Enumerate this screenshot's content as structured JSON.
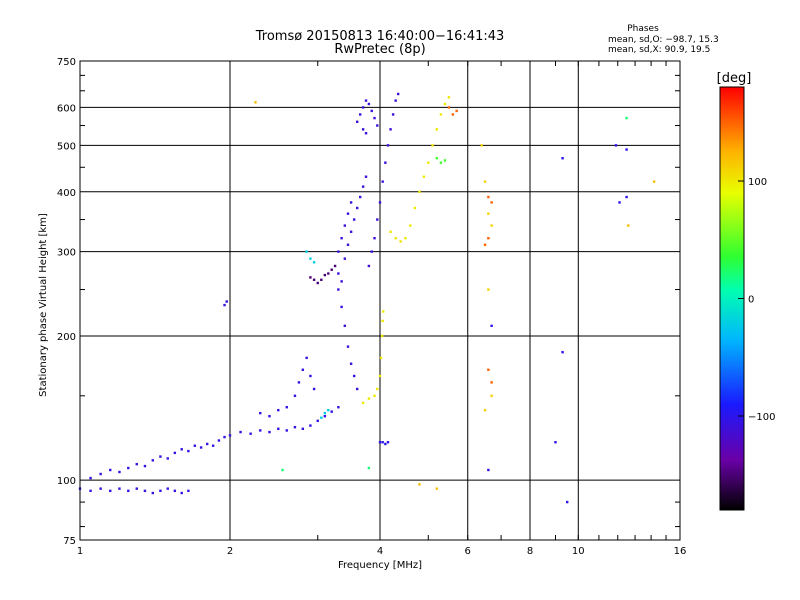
{
  "chart_data": {
    "type": "scatter",
    "title": "Tromsø 20150813 16:40:00−16:41:43",
    "subtitle": "RwPretec (8p)",
    "xlabel": "Frequency [MHz]",
    "ylabel": "Stationary phase Virtual Height [km]",
    "xscale": "log",
    "yscale": "log",
    "xlim": [
      1,
      16
    ],
    "ylim": [
      75,
      750
    ],
    "x_ticks": [
      "1",
      "2",
      "4",
      "6",
      "8",
      "10",
      "16"
    ],
    "x_tick_values": [
      1,
      2,
      4,
      6,
      8,
      10,
      16
    ],
    "y_ticks": [
      "75",
      "100",
      "200",
      "300",
      "400",
      "500",
      "600",
      "750"
    ],
    "y_tick_values": [
      75,
      100,
      200,
      300,
      400,
      500,
      600,
      750
    ],
    "x_gridlines": [
      2,
      4,
      6,
      8,
      10
    ],
    "y_gridlines": [
      100,
      200,
      300,
      400,
      500,
      600
    ],
    "phase_stats": {
      "title": "Phases",
      "line_o": "mean, sd,O: −98.7, 15.3",
      "line_x": "mean, sd,X:  90.9, 19.5"
    },
    "colorbar": {
      "label": "[deg]",
      "range": [
        -180,
        180
      ],
      "ticks": [
        "100",
        "0",
        "−100"
      ],
      "tick_values": [
        100,
        0,
        -100
      ]
    },
    "series": [
      {
        "color_value": -105,
        "points": [
          [
            1.0,
            96
          ],
          [
            1.05,
            95
          ],
          [
            1.1,
            96
          ],
          [
            1.15,
            95
          ],
          [
            1.2,
            96
          ],
          [
            1.25,
            95
          ],
          [
            1.3,
            96
          ],
          [
            1.35,
            95
          ],
          [
            1.4,
            94
          ],
          [
            1.45,
            95
          ],
          [
            1.5,
            96
          ],
          [
            1.55,
            95
          ],
          [
            1.6,
            94
          ],
          [
            1.65,
            95
          ],
          [
            1.05,
            101
          ],
          [
            1.1,
            103
          ],
          [
            1.15,
            105
          ],
          [
            1.2,
            104
          ],
          [
            1.25,
            106
          ],
          [
            1.3,
            108
          ],
          [
            1.35,
            107
          ],
          [
            1.4,
            110
          ],
          [
            1.45,
            112
          ],
          [
            1.5,
            111
          ],
          [
            1.55,
            114
          ],
          [
            1.6,
            116
          ],
          [
            1.65,
            115
          ],
          [
            1.7,
            118
          ],
          [
            1.75,
            117
          ],
          [
            1.8,
            119
          ],
          [
            1.85,
            118
          ],
          [
            1.9,
            121
          ],
          [
            1.95,
            123
          ],
          [
            2.0,
            124
          ],
          [
            2.1,
            126
          ],
          [
            2.2,
            125
          ],
          [
            2.3,
            127
          ],
          [
            2.4,
            126
          ],
          [
            2.5,
            128
          ],
          [
            2.6,
            127
          ],
          [
            2.7,
            129
          ],
          [
            2.8,
            128
          ],
          [
            2.9,
            130
          ],
          [
            3.0,
            133
          ],
          [
            3.1,
            136
          ],
          [
            3.2,
            139
          ],
          [
            3.3,
            142
          ],
          [
            1.95,
            232
          ],
          [
            1.97,
            236
          ],
          [
            2.3,
            138
          ],
          [
            2.4,
            136
          ],
          [
            2.5,
            140
          ],
          [
            2.6,
            142
          ],
          [
            2.7,
            150
          ],
          [
            2.75,
            160
          ],
          [
            2.8,
            170
          ],
          [
            2.85,
            180
          ],
          [
            2.9,
            165
          ],
          [
            2.95,
            155
          ]
        ]
      },
      {
        "color_value": -110,
        "points": [
          [
            3.3,
            300
          ],
          [
            3.35,
            320
          ],
          [
            3.4,
            340
          ],
          [
            3.45,
            360
          ],
          [
            3.5,
            380
          ],
          [
            3.3,
            250
          ],
          [
            3.35,
            230
          ],
          [
            3.4,
            210
          ],
          [
            3.45,
            190
          ],
          [
            3.5,
            175
          ],
          [
            3.55,
            165
          ],
          [
            3.6,
            155
          ],
          [
            3.3,
            270
          ],
          [
            3.35,
            260
          ],
          [
            3.4,
            290
          ],
          [
            3.45,
            310
          ],
          [
            3.5,
            330
          ],
          [
            3.55,
            350
          ],
          [
            3.6,
            370
          ],
          [
            3.65,
            390
          ],
          [
            3.7,
            410
          ],
          [
            3.75,
            430
          ],
          [
            3.8,
            280
          ],
          [
            3.85,
            300
          ],
          [
            3.9,
            320
          ],
          [
            3.95,
            350
          ],
          [
            4.0,
            380
          ],
          [
            4.05,
            420
          ],
          [
            4.1,
            460
          ],
          [
            4.15,
            500
          ],
          [
            4.2,
            540
          ],
          [
            4.25,
            580
          ],
          [
            4.3,
            620
          ],
          [
            4.35,
            640
          ],
          [
            3.6,
            560
          ],
          [
            3.65,
            580
          ],
          [
            3.7,
            600
          ],
          [
            3.75,
            620
          ],
          [
            3.8,
            610
          ],
          [
            3.85,
            590
          ],
          [
            3.9,
            570
          ],
          [
            3.95,
            550
          ],
          [
            3.7,
            540
          ],
          [
            3.75,
            530
          ]
        ]
      },
      {
        "color_value": -150,
        "points": [
          [
            2.9,
            265
          ],
          [
            2.95,
            262
          ],
          [
            3.0,
            258
          ],
          [
            3.05,
            262
          ],
          [
            3.1,
            268
          ],
          [
            3.15,
            270
          ],
          [
            3.2,
            275
          ],
          [
            3.25,
            280
          ]
        ]
      },
      {
        "color_value": -20,
        "points": [
          [
            2.85,
            300
          ],
          [
            2.9,
            290
          ],
          [
            2.95,
            285
          ],
          [
            3.05,
            135
          ],
          [
            3.1,
            138
          ],
          [
            3.15,
            140
          ]
        ]
      },
      {
        "color_value": 100,
        "points": [
          [
            3.7,
            145
          ],
          [
            3.8,
            148
          ],
          [
            3.9,
            150
          ],
          [
            3.95,
            155
          ],
          [
            4.0,
            165
          ],
          [
            4.02,
            180
          ],
          [
            4.04,
            200
          ],
          [
            4.05,
            215
          ],
          [
            4.06,
            225
          ],
          [
            4.2,
            330
          ],
          [
            4.3,
            320
          ],
          [
            4.4,
            315
          ],
          [
            4.5,
            320
          ],
          [
            4.6,
            340
          ],
          [
            4.7,
            370
          ],
          [
            4.8,
            400
          ],
          [
            4.9,
            430
          ],
          [
            5.0,
            460
          ],
          [
            5.1,
            500
          ],
          [
            5.2,
            540
          ],
          [
            5.3,
            580
          ],
          [
            5.4,
            610
          ],
          [
            5.5,
            630
          ]
        ]
      },
      {
        "color_value": 40,
        "points": [
          [
            5.2,
            470
          ],
          [
            5.3,
            460
          ],
          [
            5.4,
            465
          ]
        ]
      },
      {
        "color_value": 150,
        "points": [
          [
            5.5,
            600
          ],
          [
            5.6,
            580
          ],
          [
            5.7,
            590
          ],
          [
            6.6,
            390
          ],
          [
            6.7,
            380
          ],
          [
            6.6,
            170
          ],
          [
            6.7,
            160
          ],
          [
            6.5,
            310
          ],
          [
            6.6,
            320
          ]
        ]
      },
      {
        "color_value": 110,
        "points": [
          [
            6.4,
            500
          ],
          [
            6.5,
            420
          ],
          [
            6.6,
            250
          ],
          [
            6.7,
            150
          ],
          [
            6.5,
            140
          ],
          [
            6.6,
            360
          ],
          [
            6.7,
            340
          ]
        ]
      },
      {
        "color_value": -100,
        "points": [
          [
            4.0,
            120
          ],
          [
            4.05,
            120
          ],
          [
            4.1,
            119
          ],
          [
            4.15,
            120
          ],
          [
            6.6,
            105
          ],
          [
            6.7,
            210
          ],
          [
            9.3,
            470
          ],
          [
            9.3,
            185
          ],
          [
            9.0,
            120
          ],
          [
            9.5,
            90
          ],
          [
            11.9,
            500
          ],
          [
            12.5,
            490
          ],
          [
            12.1,
            380
          ],
          [
            12.5,
            390
          ]
        ]
      },
      {
        "color_value": 20,
        "points": [
          [
            12.5,
            570
          ],
          [
            2.55,
            105
          ],
          [
            3.8,
            106
          ]
        ]
      },
      {
        "color_value": 120,
        "points": [
          [
            2.25,
            615
          ],
          [
            4.8,
            98
          ],
          [
            5.2,
            96
          ],
          [
            14.2,
            420
          ],
          [
            12.6,
            340
          ]
        ]
      }
    ]
  }
}
